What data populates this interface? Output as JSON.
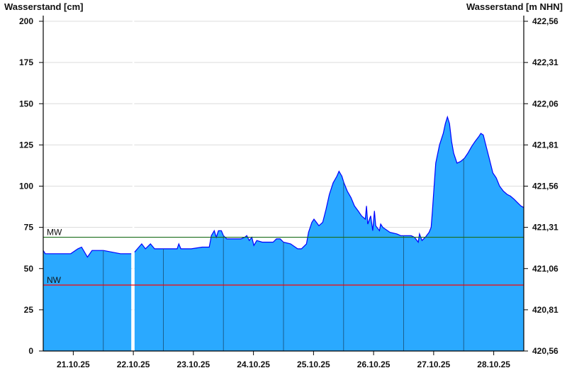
{
  "chart_data": {
    "type": "area",
    "ylabel_left": "Wasserstand [cm]",
    "ylabel_right": "Wasserstand [m NHN]",
    "ylim": [
      0,
      200
    ],
    "yticks_left": [
      "0",
      "25",
      "50",
      "75",
      "100",
      "125",
      "150",
      "175",
      "200"
    ],
    "yticks_right": [
      "420,56",
      "420,81",
      "421,06",
      "421,31",
      "421,56",
      "421,81",
      "422,06",
      "422,31",
      "422,56"
    ],
    "xlim": [
      "2025-10-21T00:00",
      "2025-10-29T00:00"
    ],
    "xticks": [
      "21.10.25",
      "22.10.25",
      "23.10.25",
      "24.10.25",
      "25.10.25",
      "26.10.25",
      "27.10.25",
      "28.10.25"
    ],
    "grid": true,
    "colors": {
      "fill": "#2aa9ff",
      "line": "#0000ff",
      "mw": "#1a6e1a",
      "nw": "#ff0000",
      "day_lines": "#1b5f8f",
      "grid": "#dcdcdc"
    },
    "reference_lines": [
      {
        "label": "MW",
        "value": 69
      },
      {
        "label": "NW",
        "value": 40
      }
    ],
    "points": [
      [
        "2025-10-21T00:00",
        61
      ],
      [
        "2025-10-21T00:50",
        59
      ],
      [
        "2025-10-21T11:00",
        59
      ],
      [
        "2025-10-21T13:50",
        62
      ],
      [
        "2025-10-21T15:20",
        63
      ],
      [
        "2025-10-21T17:40",
        57
      ],
      [
        "2025-10-21T19:30",
        61
      ],
      [
        "2025-10-22T00:00",
        61
      ],
      [
        "2025-10-22T06:50",
        59
      ],
      [
        "2025-10-22T11:10",
        59
      ],
      [
        "2025-10-22T12:00",
        null
      ],
      [
        "2025-10-22T12:30",
        60
      ],
      [
        "2025-10-22T15:20",
        65
      ],
      [
        "2025-10-22T16:50",
        62
      ],
      [
        "2025-10-22T18:50",
        65
      ],
      [
        "2025-10-22T20:30",
        62
      ],
      [
        "2025-10-22T23:50",
        62
      ],
      [
        "2025-10-23T05:30",
        62
      ],
      [
        "2025-10-23T06:10",
        65
      ],
      [
        "2025-10-23T07:00",
        62
      ],
      [
        "2025-10-23T11:10",
        62
      ],
      [
        "2025-10-23T15:30",
        63
      ],
      [
        "2025-10-23T18:20",
        63
      ],
      [
        "2025-10-23T19:10",
        70
      ],
      [
        "2025-10-23T20:20",
        73
      ],
      [
        "2025-10-23T21:10",
        69
      ],
      [
        "2025-10-23T22:00",
        73
      ],
      [
        "2025-10-23T23:10",
        73
      ],
      [
        "2025-10-24T00:00",
        70
      ],
      [
        "2025-10-24T01:20",
        68
      ],
      [
        "2025-10-24T07:00",
        68
      ],
      [
        "2025-10-24T08:30",
        69
      ],
      [
        "2025-10-24T09:20",
        70
      ],
      [
        "2025-10-24T10:20",
        67
      ],
      [
        "2025-10-24T11:20",
        69
      ],
      [
        "2025-10-24T12:10",
        64
      ],
      [
        "2025-10-24T13:20",
        67
      ],
      [
        "2025-10-24T15:30",
        66
      ],
      [
        "2025-10-24T19:50",
        66
      ],
      [
        "2025-10-24T21:10",
        68
      ],
      [
        "2025-10-24T22:40",
        68
      ],
      [
        "2025-10-25T00:00",
        66
      ],
      [
        "2025-10-25T02:50",
        65
      ],
      [
        "2025-10-25T05:40",
        62
      ],
      [
        "2025-10-25T07:10",
        62
      ],
      [
        "2025-10-25T09:10",
        65
      ],
      [
        "2025-10-25T10:00",
        72
      ],
      [
        "2025-10-25T11:20",
        78
      ],
      [
        "2025-10-25T12:10",
        80
      ],
      [
        "2025-10-25T13:10",
        78
      ],
      [
        "2025-10-25T14:10",
        76
      ],
      [
        "2025-10-25T15:40",
        78
      ],
      [
        "2025-10-25T17:00",
        86
      ],
      [
        "2025-10-25T18:20",
        95
      ],
      [
        "2025-10-25T19:50",
        102
      ],
      [
        "2025-10-25T21:20",
        106
      ],
      [
        "2025-10-25T22:10",
        109
      ],
      [
        "2025-10-25T23:20",
        106
      ],
      [
        "2025-10-26T00:10",
        102
      ],
      [
        "2025-10-26T01:30",
        97
      ],
      [
        "2025-10-26T03:00",
        93
      ],
      [
        "2025-10-26T04:20",
        88
      ],
      [
        "2025-10-26T05:50",
        85
      ],
      [
        "2025-10-26T07:10",
        82
      ],
      [
        "2025-10-26T08:40",
        80
      ],
      [
        "2025-10-26T09:10",
        88
      ],
      [
        "2025-10-26T09:40",
        77
      ],
      [
        "2025-10-26T10:50",
        82
      ],
      [
        "2025-10-26T11:40",
        73
      ],
      [
        "2025-10-26T12:20",
        85
      ],
      [
        "2025-10-26T12:50",
        76
      ],
      [
        "2025-10-26T14:20",
        73
      ],
      [
        "2025-10-26T14:50",
        77
      ],
      [
        "2025-10-26T15:40",
        75
      ],
      [
        "2025-10-26T18:30",
        72
      ],
      [
        "2025-10-26T21:20",
        71
      ],
      [
        "2025-10-26T22:50",
        70
      ],
      [
        "2025-10-27T03:00",
        70
      ],
      [
        "2025-10-27T04:20",
        69
      ],
      [
        "2025-10-27T05:50",
        66
      ],
      [
        "2025-10-27T06:20",
        71
      ],
      [
        "2025-10-27T07:20",
        67
      ],
      [
        "2025-10-27T08:40",
        69
      ],
      [
        "2025-10-27T10:10",
        72
      ],
      [
        "2025-10-27T11:00",
        75
      ],
      [
        "2025-10-27T11:30",
        85
      ],
      [
        "2025-10-27T12:10",
        100
      ],
      [
        "2025-10-27T12:50",
        114
      ],
      [
        "2025-10-27T14:20",
        125
      ],
      [
        "2025-10-27T15:50",
        132
      ],
      [
        "2025-10-27T16:40",
        138
      ],
      [
        "2025-10-27T17:30",
        142
      ],
      [
        "2025-10-27T18:20",
        138
      ],
      [
        "2025-10-27T19:10",
        127
      ],
      [
        "2025-10-27T20:00",
        120
      ],
      [
        "2025-10-27T21:20",
        114
      ],
      [
        "2025-10-27T22:50",
        115
      ],
      [
        "2025-10-28T00:20",
        117
      ],
      [
        "2025-10-28T01:40",
        120
      ],
      [
        "2025-10-28T03:10",
        124
      ],
      [
        "2025-10-28T04:30",
        127
      ],
      [
        "2025-10-28T06:00",
        130
      ],
      [
        "2025-10-28T06:50",
        132
      ],
      [
        "2025-10-28T07:50",
        131
      ],
      [
        "2025-10-28T08:50",
        125
      ],
      [
        "2025-10-28T10:10",
        117
      ],
      [
        "2025-10-28T11:40",
        108
      ],
      [
        "2025-10-28T13:00",
        105
      ],
      [
        "2025-10-28T14:20",
        100
      ],
      [
        "2025-10-28T15:50",
        97
      ],
      [
        "2025-10-28T17:20",
        95
      ],
      [
        "2025-10-28T18:40",
        94
      ],
      [
        "2025-10-28T20:10",
        92
      ],
      [
        "2025-10-28T21:30",
        90
      ],
      [
        "2025-10-28T22:50",
        88
      ],
      [
        "2025-10-29T00:00",
        87
      ]
    ]
  }
}
